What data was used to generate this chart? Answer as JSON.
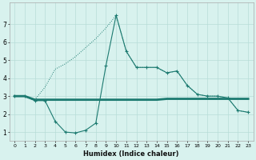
{
  "xlabel": "Humidex (Indice chaleur)",
  "x_values": [
    0,
    1,
    2,
    3,
    4,
    5,
    6,
    7,
    8,
    9,
    10,
    11,
    12,
    13,
    14,
    15,
    16,
    17,
    18,
    19,
    20,
    21,
    22,
    23
  ],
  "line_dotted": [
    3.0,
    3.0,
    2.8,
    3.5,
    4.5,
    4.8,
    5.2,
    5.7,
    6.2,
    6.8,
    7.5,
    5.5,
    4.6,
    4.6,
    4.6,
    4.3,
    4.4,
    3.6,
    3.1,
    3.0,
    3.0,
    2.9,
    2.2,
    2.1
  ],
  "line_solid": [
    3.0,
    3.0,
    2.75,
    2.75,
    1.6,
    1.0,
    0.95,
    1.1,
    1.5,
    4.7,
    7.5,
    5.5,
    4.6,
    4.6,
    4.6,
    4.3,
    4.4,
    3.6,
    3.1,
    3.0,
    3.0,
    2.9,
    2.2,
    2.1
  ],
  "line_flat": [
    3.0,
    3.0,
    2.8,
    2.8,
    2.8,
    2.8,
    2.8,
    2.8,
    2.8,
    2.8,
    2.8,
    2.8,
    2.8,
    2.8,
    2.8,
    2.85,
    2.85,
    2.85,
    2.85,
    2.85,
    2.85,
    2.85,
    2.85,
    2.85
  ],
  "line_color": "#1c7a70",
  "bg_color": "#d8f2ee",
  "grid_color": "#b8ddd8",
  "ylim": [
    0.5,
    8.2
  ],
  "yticks": [
    1,
    2,
    3,
    4,
    5,
    6,
    7
  ],
  "xticks": [
    0,
    1,
    2,
    3,
    4,
    5,
    6,
    7,
    8,
    9,
    10,
    11,
    12,
    13,
    14,
    15,
    16,
    17,
    18,
    19,
    20,
    21,
    22,
    23
  ]
}
